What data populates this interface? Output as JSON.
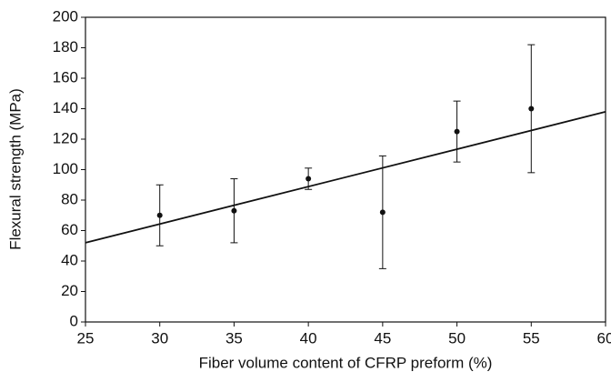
{
  "chart_data": {
    "type": "scatter",
    "x_label": "Fiber volume content of CFRP preform (%)",
    "y_label": "Flexural strength (MPa)",
    "x": [
      30,
      35,
      40,
      45,
      50,
      55
    ],
    "series": [
      {
        "values": [
          70,
          73,
          94,
          72,
          125,
          140
        ],
        "errors": [
          20,
          21,
          7,
          37,
          20,
          42
        ],
        "color": "#111111"
      }
    ],
    "trendline": {
      "x": [
        25,
        60
      ],
      "y": [
        52,
        138
      ],
      "color": "#111111"
    },
    "xlim": [
      25,
      60
    ],
    "xticks": [
      25,
      30,
      35,
      40,
      45,
      50,
      55,
      60
    ],
    "ylim": [
      0,
      200
    ],
    "yticks": [
      0,
      20,
      40,
      60,
      80,
      100,
      120,
      140,
      160,
      180,
      200
    ],
    "grid": false
  }
}
